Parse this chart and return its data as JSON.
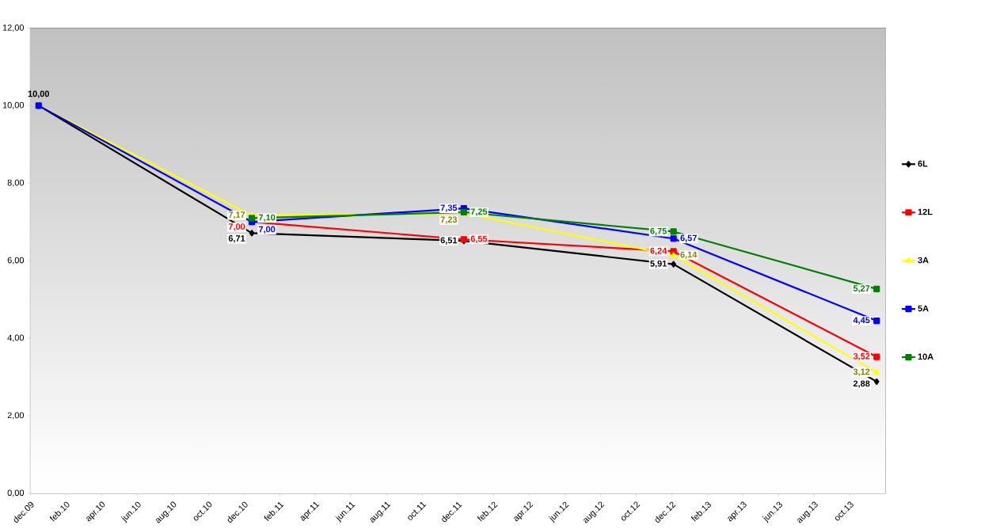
{
  "chart_data": {
    "type": "line",
    "x": [
      "2009-12-15",
      "2010-12-14",
      "2011-12-11",
      "2012-12-04",
      "2013-11-16"
    ],
    "series": [
      {
        "name": "6L",
        "color": "#000000",
        "marker": "diamond",
        "values": [
          10.0,
          6.71,
          6.51,
          5.91,
          2.88
        ],
        "value_labels": [
          "10,00",
          "6,71",
          "6,51",
          "5,91",
          "2,88"
        ]
      },
      {
        "name": "12L",
        "color": "#ff0000",
        "marker": "square",
        "values": [
          null,
          7.0,
          6.55,
          6.24,
          3.52
        ],
        "value_labels": [
          null,
          "7,00",
          "6,55",
          "6,24",
          "3,52"
        ]
      },
      {
        "name": "3A",
        "color": "#ffff00",
        "marker": "triangle",
        "values": [
          10.0,
          7.17,
          7.23,
          6.14,
          3.12
        ],
        "value_labels": [
          null,
          "7,17",
          "7,23",
          "6,14",
          "3,12"
        ]
      },
      {
        "name": "5A",
        "color": "#0000ff",
        "marker": "square",
        "values": [
          10.0,
          7.0,
          7.35,
          6.57,
          4.45
        ],
        "value_labels": [
          null,
          "7,00",
          "7,35",
          "6,57",
          "4,45"
        ]
      },
      {
        "name": "10A",
        "color": "#008000",
        "marker": "square",
        "values": [
          null,
          7.1,
          7.25,
          6.75,
          5.27
        ],
        "value_labels": [
          null,
          "7,10",
          "7,25",
          "6,75",
          "5,27"
        ]
      }
    ],
    "xlim": [
      "2009-12-01",
      "2013-12-01"
    ],
    "xticks": [
      {
        "value": "2009-12-01",
        "label": "dec.09"
      },
      {
        "value": "2010-02-01",
        "label": "feb.10"
      },
      {
        "value": "2010-04-01",
        "label": "apr.10"
      },
      {
        "value": "2010-06-01",
        "label": "jun.10"
      },
      {
        "value": "2010-08-01",
        "label": "aug.10"
      },
      {
        "value": "2010-10-01",
        "label": "oct.10"
      },
      {
        "value": "2010-12-01",
        "label": "dec.10"
      },
      {
        "value": "2011-02-01",
        "label": "feb.11"
      },
      {
        "value": "2011-04-01",
        "label": "apr.11"
      },
      {
        "value": "2011-06-01",
        "label": "jun.11"
      },
      {
        "value": "2011-08-01",
        "label": "aug.11"
      },
      {
        "value": "2011-10-01",
        "label": "oct.11"
      },
      {
        "value": "2011-12-01",
        "label": "dec.11"
      },
      {
        "value": "2012-02-01",
        "label": "feb.12"
      },
      {
        "value": "2012-04-01",
        "label": "apr.12"
      },
      {
        "value": "2012-06-01",
        "label": "jun.12"
      },
      {
        "value": "2012-08-01",
        "label": "aug.12"
      },
      {
        "value": "2012-10-01",
        "label": "oct.12"
      },
      {
        "value": "2012-12-01",
        "label": "dec.12"
      },
      {
        "value": "2013-02-01",
        "label": "feb.13"
      },
      {
        "value": "2013-04-01",
        "label": "apr.13"
      },
      {
        "value": "2013-06-01",
        "label": "jun.13"
      },
      {
        "value": "2013-08-01",
        "label": "aug.13"
      },
      {
        "value": "2013-10-01",
        "label": "oct.13"
      }
    ],
    "ylim": [
      0,
      12
    ],
    "yticks": [
      {
        "value": 0,
        "label": "0,00"
      },
      {
        "value": 2,
        "label": "2,00"
      },
      {
        "value": 4,
        "label": "4,00"
      },
      {
        "value": 6,
        "label": "6,00"
      },
      {
        "value": 8,
        "label": "8,00"
      },
      {
        "value": 10,
        "label": "10,00"
      },
      {
        "value": 12,
        "label": "12,00"
      }
    ],
    "grid": "y",
    "legend": "right",
    "line_style": "solid"
  }
}
